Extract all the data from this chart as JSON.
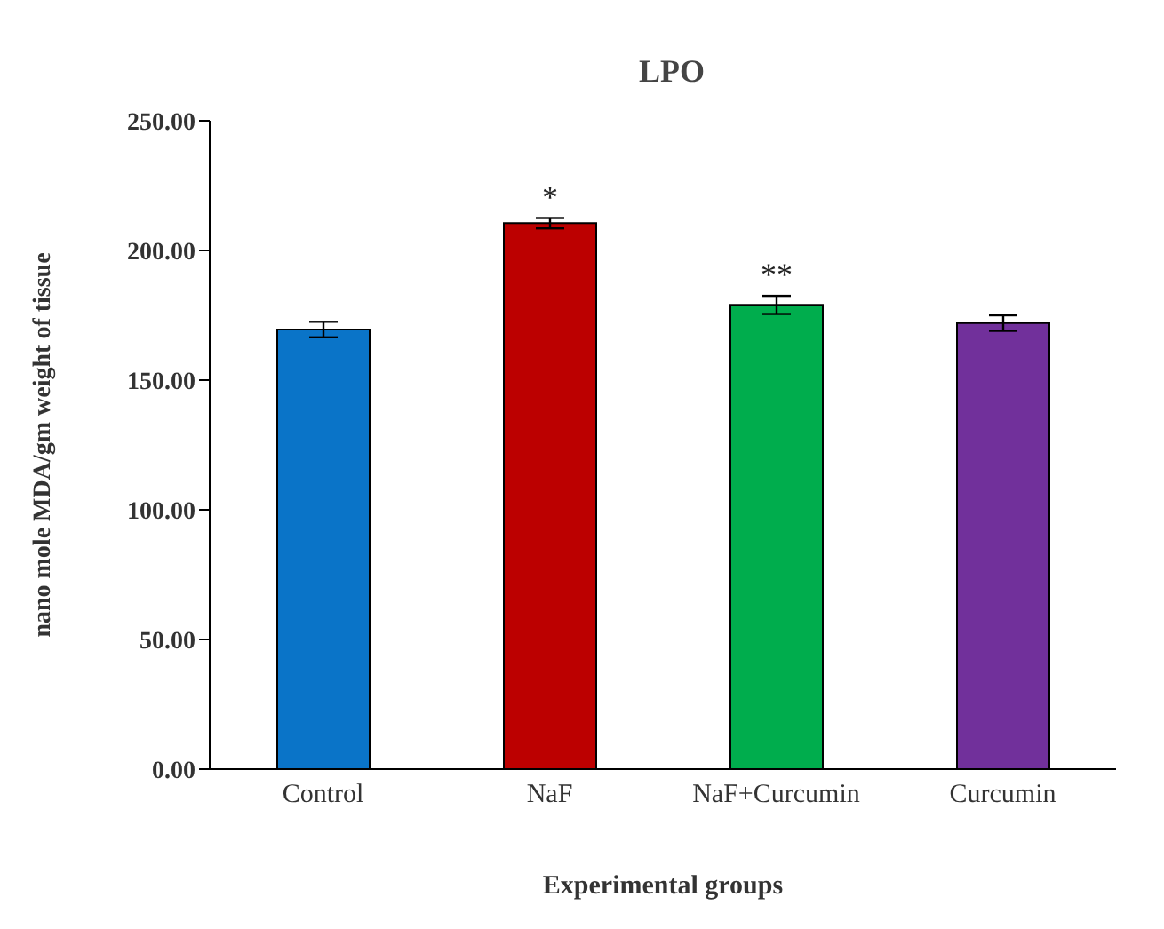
{
  "chart_data": {
    "type": "bar",
    "title": "LPO",
    "xlabel": "Experimental groups",
    "ylabel": "nano mole MDA/gm weight of tissue",
    "categories": [
      "Control",
      "NaF",
      "NaF+Curcumin",
      "Curcumin"
    ],
    "values": [
      169.5,
      210.5,
      179,
      172
    ],
    "colors": [
      "#0a74c8",
      "#bc0000",
      "#00ad4d",
      "#71309b"
    ],
    "errors": [
      3,
      2,
      3.5,
      3
    ],
    "ylim": [
      0,
      250
    ],
    "yticks": [
      {
        "value": 0,
        "label": "0.00"
      },
      {
        "value": 50,
        "label": "50.00"
      },
      {
        "value": 100,
        "label": "100.00"
      },
      {
        "value": 150,
        "label": "150.00"
      },
      {
        "value": 200,
        "label": "200.00"
      },
      {
        "value": 250,
        "label": "250.00"
      }
    ],
    "annotations": [
      {
        "text": "*",
        "x": "NaF",
        "y": 212.5
      },
      {
        "text": "**",
        "x": "NaF+Curcumin",
        "y": 182.5
      }
    ],
    "grid": false,
    "legend": false
  }
}
